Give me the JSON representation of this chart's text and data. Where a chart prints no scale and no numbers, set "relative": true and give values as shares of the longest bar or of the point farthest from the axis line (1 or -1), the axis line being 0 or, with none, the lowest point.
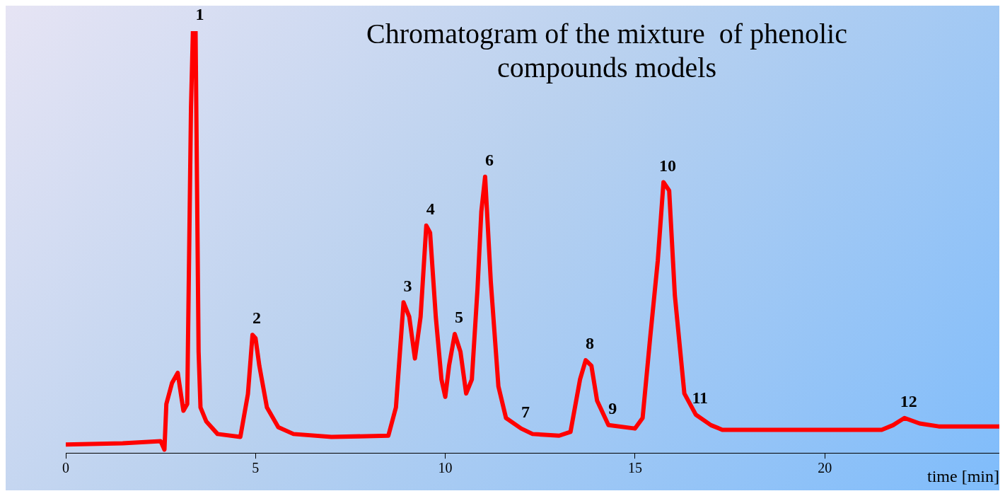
{
  "chart_data": {
    "type": "line",
    "title": [
      "Chromatogram of the mixture  of phenolic",
      "compounds models"
    ],
    "xlabel": "time [min]",
    "relative": true,
    "color": "#ff0000",
    "marker": "none",
    "line_style": "solid",
    "grid": false,
    "legend": false,
    "xlim": [
      0,
      24.6
    ],
    "xticks": [
      0,
      5,
      10,
      15,
      20
    ],
    "x": [
      0,
      1.5,
      2.5,
      2.6,
      2.65,
      2.8,
      2.95,
      3.1,
      3.2,
      3.3,
      3.35,
      3.42,
      3.5,
      3.55,
      3.7,
      4.0,
      4.6,
      4.8,
      4.92,
      5.0,
      5.1,
      5.3,
      5.6,
      6.0,
      7.0,
      8.5,
      8.7,
      8.9,
      9.05,
      9.2,
      9.35,
      9.5,
      9.6,
      9.75,
      9.9,
      10.0,
      10.1,
      10.25,
      10.4,
      10.55,
      10.7,
      10.85,
      10.95,
      11.05,
      11.2,
      11.4,
      11.6,
      12.0,
      12.3,
      13.0,
      13.3,
      13.55,
      13.7,
      13.85,
      14.0,
      14.3,
      15.0,
      15.2,
      15.4,
      15.6,
      15.75,
      15.9,
      16.05,
      16.3,
      16.6,
      17.0,
      17.3,
      19.0,
      21.5,
      21.8,
      22.1,
      22.5,
      23.0,
      24.6
    ],
    "values": [
      0.02,
      0.023,
      0.028,
      0.008,
      0.116,
      0.166,
      0.19,
      0.1,
      0.116,
      0.82,
      1.0,
      1.0,
      0.24,
      0.108,
      0.075,
      0.045,
      0.038,
      0.14,
      0.28,
      0.272,
      0.207,
      0.108,
      0.061,
      0.045,
      0.038,
      0.041,
      0.108,
      0.357,
      0.323,
      0.224,
      0.323,
      0.539,
      0.522,
      0.323,
      0.174,
      0.133,
      0.207,
      0.282,
      0.24,
      0.141,
      0.174,
      0.39,
      0.572,
      0.655,
      0.406,
      0.158,
      0.083,
      0.058,
      0.045,
      0.041,
      0.05,
      0.174,
      0.22,
      0.207,
      0.124,
      0.066,
      0.058,
      0.083,
      0.274,
      0.456,
      0.642,
      0.622,
      0.373,
      0.141,
      0.091,
      0.066,
      0.055,
      0.055,
      0.055,
      0.066,
      0.083,
      0.07,
      0.063,
      0.063
    ],
    "annotations": [
      {
        "text": "1",
        "x": 3.42,
        "y": 1.0
      },
      {
        "text": "2",
        "x": 4.92,
        "y": 0.28
      },
      {
        "text": "3",
        "x": 8.9,
        "y": 0.357
      },
      {
        "text": "4",
        "x": 9.5,
        "y": 0.539
      },
      {
        "text": "5",
        "x": 10.25,
        "y": 0.282
      },
      {
        "text": "6",
        "x": 11.05,
        "y": 0.655
      },
      {
        "text": "7",
        "x": 12.0,
        "y": 0.058
      },
      {
        "text": "8",
        "x": 13.7,
        "y": 0.22
      },
      {
        "text": "9",
        "x": 14.3,
        "y": 0.066
      },
      {
        "text": "10",
        "x": 15.75,
        "y": 0.642
      },
      {
        "text": "11",
        "x": 16.6,
        "y": 0.091
      },
      {
        "text": "12",
        "x": 22.1,
        "y": 0.083
      }
    ]
  }
}
